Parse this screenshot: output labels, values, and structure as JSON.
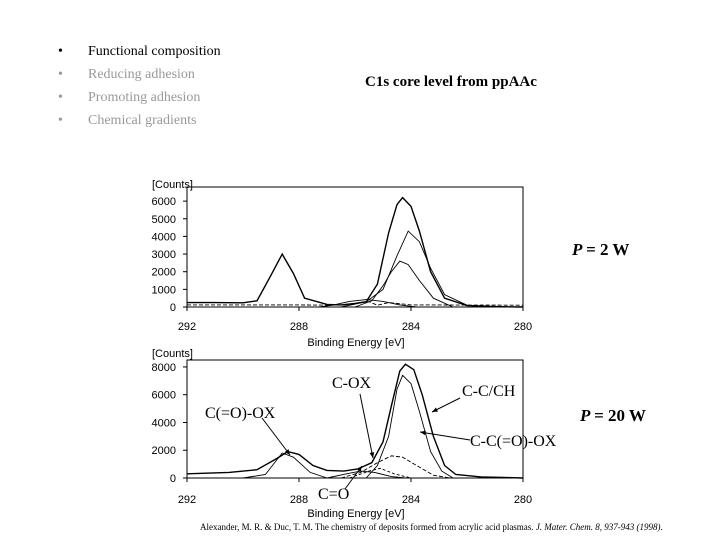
{
  "bullets": [
    {
      "text": "Functional composition",
      "active": true
    },
    {
      "text": "Reducing adhesion",
      "active": false
    },
    {
      "text": "Promoting adhesion",
      "active": false
    },
    {
      "text": "Chemical gradients",
      "active": false
    }
  ],
  "bullet_symbol": "•",
  "title": "C1s core level from ppAAc",
  "citation": {
    "authors": "Alexander, M. R. & Duc, T. M. The chemistry of deposits formed from acrylic acid plasmas.",
    "journal": "J. Mater. Chem. 8, 937-943 (1998)",
    "end": "."
  },
  "chart_data": [
    {
      "type": "line",
      "ylabel": "[Counts]",
      "xlabel": "Binding Energy [eV]",
      "x_ticks": [
        "292",
        "288",
        "284",
        "280"
      ],
      "y_ticks": [
        "6000",
        "5000",
        "4000",
        "3000",
        "2000",
        "1000",
        "0"
      ],
      "xlim": [
        292,
        280
      ],
      "ylim": [
        0,
        6800
      ],
      "condition_label": "P = ",
      "condition_value": "2 W",
      "series": [
        {
          "values": [
            [
              292.0,
              250
            ],
            [
              291.0,
              250
            ],
            [
              290.0,
              240
            ],
            [
              289.5,
              350
            ],
            [
              289.0,
              1800
            ],
            [
              288.6,
              3000
            ],
            [
              288.2,
              1900
            ],
            [
              287.8,
              500
            ],
            [
              287.0,
              150
            ],
            [
              286.5,
              120
            ],
            [
              286.0,
              200
            ],
            [
              285.6,
              300
            ],
            [
              285.2,
              1300
            ],
            [
              284.8,
              4200
            ],
            [
              284.5,
              5800
            ],
            [
              284.3,
              6200
            ],
            [
              284.0,
              5700
            ],
            [
              283.7,
              4300
            ],
            [
              283.3,
              2000
            ],
            [
              282.8,
              500
            ],
            [
              282.0,
              80
            ],
            [
              281.0,
              20
            ],
            [
              280.0,
              0
            ]
          ]
        },
        {
          "values": [
            [
              286.5,
              0
            ],
            [
              285.6,
              300
            ],
            [
              285.0,
              1000
            ],
            [
              284.5,
              2900
            ],
            [
              284.1,
              4300
            ],
            [
              283.7,
              3700
            ],
            [
              283.3,
              2200
            ],
            [
              282.8,
              700
            ],
            [
              282.0,
              100
            ],
            [
              281.0,
              0
            ]
          ]
        },
        {
          "values": [
            [
              286.0,
              0
            ],
            [
              285.4,
              350
            ],
            [
              285.0,
              1200
            ],
            [
              284.7,
              2000
            ],
            [
              284.4,
              2600
            ],
            [
              284.1,
              2400
            ],
            [
              283.7,
              1500
            ],
            [
              283.2,
              500
            ],
            [
              282.5,
              0
            ]
          ]
        },
        {
          "values": [
            [
              287.3,
              0
            ],
            [
              286.8,
              100
            ],
            [
              286.2,
              320
            ],
            [
              285.6,
              420
            ],
            [
              285.0,
              320
            ],
            [
              284.4,
              120
            ],
            [
              283.8,
              0
            ]
          ]
        },
        {
          "values": [
            [
              292.0,
              120
            ],
            [
              289.0,
              120
            ],
            [
              286.5,
              110
            ],
            [
              285.5,
              300
            ],
            [
              285.2,
              100
            ],
            [
              284.8,
              250
            ],
            [
              284.0,
              120
            ],
            [
              280.0,
              100
            ]
          ]
        }
      ]
    },
    {
      "type": "line",
      "ylabel": "[Counts]",
      "xlabel": "Binding Energy [eV]",
      "x_ticks": [
        "292",
        "288",
        "284",
        "280"
      ],
      "y_ticks": [
        "8000",
        "6000",
        "4000",
        "2000",
        "0"
      ],
      "xlim": [
        292,
        280
      ],
      "ylim": [
        0,
        8500
      ],
      "condition_label": "P = ",
      "condition_value": "20 W",
      "series": [
        {
          "values": [
            [
              292.0,
              300
            ],
            [
              290.5,
              400
            ],
            [
              289.5,
              600
            ],
            [
              288.8,
              1400
            ],
            [
              288.4,
              1900
            ],
            [
              288.0,
              1700
            ],
            [
              287.5,
              900
            ],
            [
              287.0,
              550
            ],
            [
              286.4,
              500
            ],
            [
              285.9,
              650
            ],
            [
              285.4,
              1100
            ],
            [
              285.0,
              2600
            ],
            [
              284.7,
              5200
            ],
            [
              284.4,
              7700
            ],
            [
              284.2,
              8200
            ],
            [
              283.9,
              7800
            ],
            [
              283.6,
              6000
            ],
            [
              283.2,
              3000
            ],
            [
              282.8,
              900
            ],
            [
              282.4,
              250
            ],
            [
              281.5,
              80
            ],
            [
              280.0,
              0
            ]
          ]
        },
        {
          "values": [
            [
              285.6,
              0
            ],
            [
              285.2,
              900
            ],
            [
              284.8,
              3000
            ],
            [
              284.5,
              6400
            ],
            [
              284.3,
              7400
            ],
            [
              284.0,
              6800
            ],
            [
              283.7,
              4800
            ],
            [
              283.3,
              1900
            ],
            [
              282.9,
              500
            ],
            [
              282.5,
              0
            ]
          ]
        },
        {
          "values": [
            [
              290.0,
              0
            ],
            [
              289.2,
              250
            ],
            [
              288.6,
              1800
            ],
            [
              288.2,
              1500
            ],
            [
              287.6,
              400
            ],
            [
              287.0,
              0
            ]
          ]
        },
        {
          "values": [
            [
              287.0,
              0
            ],
            [
              286.3,
              300
            ],
            [
              285.8,
              500
            ],
            [
              285.3,
              400
            ],
            [
              284.7,
              100
            ],
            [
              284.2,
              0
            ]
          ]
        },
        {
          "values": [
            [
              286.5,
              0
            ],
            [
              285.8,
              400
            ],
            [
              285.2,
              1100
            ],
            [
              284.7,
              1600
            ],
            [
              284.3,
              1500
            ],
            [
              283.8,
              900
            ],
            [
              283.2,
              200
            ],
            [
              282.6,
              0
            ]
          ]
        },
        {
          "values": [
            [
              286.2,
              0
            ],
            [
              285.5,
              500
            ],
            [
              285.1,
              700
            ],
            [
              284.6,
              300
            ],
            [
              284.0,
              0
            ]
          ]
        }
      ],
      "annotations": [
        {
          "text": "C(=O)-OX"
        },
        {
          "text": "C-OX"
        },
        {
          "text": "C-C/CH"
        },
        {
          "text": "C-C(=O)-OX"
        },
        {
          "text": "C=O"
        }
      ]
    }
  ]
}
